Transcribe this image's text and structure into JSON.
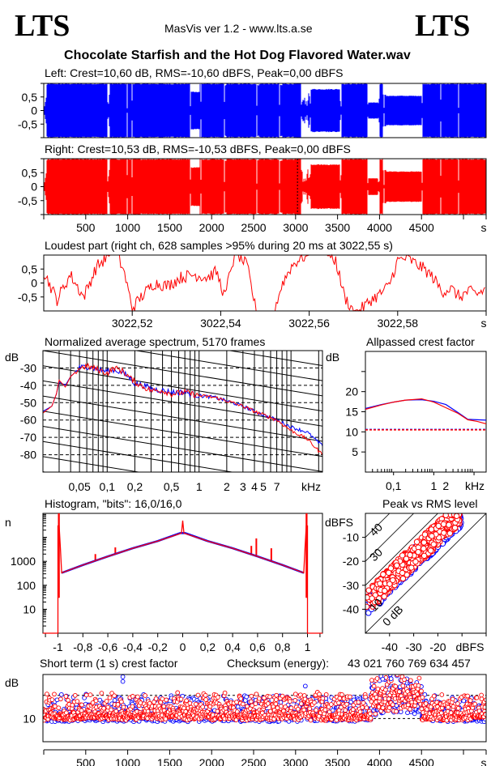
{
  "header": {
    "logo_left": "LTS",
    "logo_right": "LTS",
    "app_version": "MasVis ver 1.2 - www.lts.a.se",
    "file_name": "Chocolate Starfish and the Hot Dog Flavored Water.wav"
  },
  "colors": {
    "left": "#0000ff",
    "right": "#ff0000",
    "frame": "#000000"
  },
  "chart_data": [
    {
      "id": "left-waveform",
      "type": "area",
      "title": "Left: Crest=10,60 dB, RMS=-10,60 dBFS, Peak=0,00 dBFS",
      "ylim": [
        -1,
        1
      ],
      "yticks": [
        "0,5",
        "0",
        "-0,5"
      ],
      "yticks_values": [
        0.5,
        0,
        -0.5
      ],
      "xlim": [
        0,
        5270
      ],
      "series": [
        {
          "name": "Left",
          "color": "#0000ff",
          "segments": [
            [
              30,
              1.0
            ],
            [
              40,
              0.95
            ],
            [
              780,
              1.0
            ],
            [
              790,
              0.6
            ],
            [
              1000,
              1.0
            ],
            [
              1050,
              1.0
            ],
            [
              1755,
              1.0
            ],
            [
              1765,
              0.7
            ],
            [
              1860,
              0.7
            ],
            [
              1880,
              1.0
            ],
            [
              2160,
              1.0
            ],
            [
              2180,
              0.95
            ],
            [
              2530,
              1.0
            ],
            [
              2560,
              0.95
            ],
            [
              2810,
              1.0
            ],
            [
              2840,
              0.95
            ],
            [
              3060,
              1.0
            ],
            [
              3090,
              0.0
            ],
            [
              3130,
              0.4
            ],
            [
              3200,
              0.8
            ],
            [
              3530,
              0.8
            ],
            [
              3560,
              1.0
            ],
            [
              3860,
              1.0
            ],
            [
              3990,
              0.3
            ],
            [
              4040,
              1.0
            ],
            [
              4080,
              0.6
            ],
            [
              4500,
              0.55
            ],
            [
              4520,
              1.0
            ],
            [
              5270,
              1.0
            ]
          ]
        }
      ]
    },
    {
      "id": "right-waveform",
      "type": "area",
      "title": "Right: Crest=10,53 dB, RMS=-10,53 dBFS, Peak=0,00 dBFS",
      "ylim": [
        -1,
        1
      ],
      "yticks": [
        "0,5",
        "0",
        "-0,5"
      ],
      "yticks_values": [
        0.5,
        0,
        -0.5
      ],
      "xlim": [
        0,
        5270
      ],
      "xticks": [
        "500",
        "1000",
        "1500",
        "2000",
        "2500",
        "3000",
        "3500",
        "4000",
        "4500",
        "s"
      ],
      "xticks_values": [
        500,
        1000,
        1500,
        2000,
        2500,
        3000,
        3500,
        4000,
        4500,
        5000
      ],
      "marker_at": 3022.55,
      "series": [
        {
          "name": "Right",
          "color": "#ff0000"
        }
      ]
    },
    {
      "id": "loudest-part",
      "type": "line",
      "title": "Loudest part (right ch, 628 samples >95% during 20 ms at 3022,55 s)",
      "ylim": [
        -1,
        1
      ],
      "yticks": [
        "0,5",
        "0",
        "-0,5"
      ],
      "yticks_values": [
        0.5,
        0,
        -0.5
      ],
      "xlim": [
        3022.5,
        3022.6
      ],
      "xticks": [
        "3022,52",
        "3022,54",
        "3022,56",
        "3022,58",
        "s"
      ],
      "xticks_values": [
        3022.52,
        3022.54,
        3022.56,
        3022.58,
        3022.6
      ],
      "series": [
        {
          "name": "Right",
          "color": "#ff0000",
          "x": [
            3022.5,
            3022.503,
            3022.506,
            3022.509,
            3022.512,
            3022.515,
            3022.5165,
            3022.518,
            3022.52,
            3022.522,
            3022.525,
            3022.528,
            3022.531,
            3022.534,
            3022.537,
            3022.539,
            3022.541,
            3022.5425,
            3022.544,
            3022.546,
            3022.548,
            3022.55,
            3022.552,
            3022.554,
            3022.556,
            3022.558,
            3022.56,
            3022.562,
            3022.564,
            3022.566,
            3022.568,
            3022.57,
            3022.572,
            3022.574,
            3022.576,
            3022.578,
            3022.58,
            3022.582,
            3022.584,
            3022.586,
            3022.588,
            3022.59,
            3022.592,
            3022.594,
            3022.596,
            3022.598,
            3022.6
          ],
          "y": [
            0.4,
            -0.6,
            0.3,
            -0.5,
            0.6,
            1.0,
            1.0,
            0.5,
            -0.9,
            -0.5,
            0.0,
            -0.1,
            0.2,
            0.3,
            0.2,
            0.4,
            -0.5,
            0.7,
            1.0,
            0.6,
            -1.0,
            -1.0,
            -1.0,
            0.0,
            0.6,
            0.9,
            1.0,
            1.0,
            1.0,
            0.8,
            -0.5,
            -1.0,
            -0.9,
            -0.6,
            -0.4,
            -0.1,
            0.8,
            0.9,
            0.7,
            0.5,
            0.2,
            -0.3,
            -0.2,
            -0.5,
            -0.3,
            -0.4,
            -0.2
          ]
        }
      ]
    },
    {
      "id": "spectrum",
      "type": "line",
      "title": "Normalized average spectrum, 5170 frames",
      "ylabel": "dB",
      "xlabel": "kHz",
      "xscale": "log",
      "xlim": [
        0.02,
        22
      ],
      "ylim": [
        -90,
        -20
      ],
      "yticks": [
        "-30",
        "-40",
        "-50",
        "-60",
        "-70",
        "-80"
      ],
      "yticks_values": [
        -30,
        -40,
        -50,
        -60,
        -70,
        -80
      ],
      "xticks": [
        "0,05",
        "0,1",
        "0,2",
        "0,5",
        "1",
        "2",
        "3",
        "4",
        "5",
        "7",
        "kHz"
      ],
      "xticks_values": [
        0.05,
        0.1,
        0.2,
        0.5,
        1,
        2,
        3,
        4,
        5,
        7,
        22
      ],
      "grid": true,
      "series": [
        {
          "name": "Left",
          "color": "#0000ff",
          "x": [
            0.02,
            0.025,
            0.028,
            0.03,
            0.035,
            0.04,
            0.05,
            0.06,
            0.07,
            0.08,
            0.1,
            0.12,
            0.15,
            0.18,
            0.2,
            0.25,
            0.3,
            0.4,
            0.5,
            0.7,
            1,
            1.5,
            2,
            3,
            4,
            5,
            7,
            10,
            15,
            22
          ],
          "y": [
            -55,
            -52,
            -45,
            -38,
            -40,
            -35,
            -30,
            -29,
            -30,
            -31,
            -32,
            -31,
            -33,
            -36,
            -39,
            -40,
            -42,
            -43,
            -44,
            -44,
            -46,
            -47,
            -49,
            -52,
            -55,
            -57,
            -60,
            -64,
            -67,
            -75
          ]
        },
        {
          "name": "Right",
          "color": "#ff0000",
          "x": [
            0.02,
            0.025,
            0.028,
            0.03,
            0.035,
            0.04,
            0.05,
            0.06,
            0.07,
            0.08,
            0.1,
            0.12,
            0.15,
            0.18,
            0.2,
            0.25,
            0.3,
            0.4,
            0.5,
            0.7,
            1,
            1.5,
            2,
            3,
            4,
            5,
            7,
            10,
            15,
            22
          ],
          "y": [
            -56,
            -52,
            -45,
            -37,
            -41,
            -35,
            -30,
            -29,
            -30,
            -31,
            -33,
            -30,
            -32,
            -36,
            -38,
            -41,
            -43,
            -43,
            -45,
            -44,
            -46,
            -47,
            -49,
            -52,
            -55,
            -57,
            -60,
            -66,
            -71,
            -80
          ]
        }
      ]
    },
    {
      "id": "allpassed-crest",
      "type": "line",
      "title": "Allpassed crest factor",
      "ylabel": "dB",
      "xlabel": "kHz",
      "xscale": "log",
      "xlim": [
        0.02,
        20
      ],
      "ylim": [
        0,
        30
      ],
      "yticks": [
        "20",
        "15",
        "10",
        "5"
      ],
      "yticks_values": [
        20,
        15,
        10,
        5
      ],
      "xticks": [
        "0,1",
        "1",
        "2",
        "kHz"
      ],
      "xticks_values": [
        0.1,
        1,
        2,
        20
      ],
      "reference_lines": [
        {
          "name": "Left",
          "color": "#0000ff",
          "value": 10.6
        },
        {
          "name": "Right",
          "color": "#ff0000",
          "value": 10.5
        }
      ],
      "series": [
        {
          "name": "Left",
          "color": "#0000ff",
          "x": [
            0.02,
            0.05,
            0.1,
            0.2,
            0.5,
            1,
            2,
            4,
            7,
            12,
            20
          ],
          "y": [
            15.8,
            16.8,
            17.4,
            17.9,
            18.0,
            17.6,
            16.8,
            14.8,
            13.1,
            13.0,
            12.9
          ]
        },
        {
          "name": "Right",
          "color": "#ff0000",
          "x": [
            0.02,
            0.05,
            0.1,
            0.2,
            0.5,
            1,
            2,
            4,
            7,
            12,
            20
          ],
          "y": [
            15.6,
            16.7,
            17.4,
            17.9,
            18.2,
            17.4,
            16.0,
            14.6,
            13.0,
            12.6,
            12.0
          ]
        }
      ]
    },
    {
      "id": "histogram",
      "type": "line",
      "title": "Histogram, \"bits\": 16,0/16,0",
      "ylabel": "n",
      "yscale": "log",
      "xlim": [
        -1.12,
        1.12
      ],
      "ylim": [
        1,
        100000
      ],
      "yticks": [
        "1000",
        "100",
        "10"
      ],
      "yticks_values": [
        1000,
        100,
        10
      ],
      "xticks": [
        "-1",
        "-0,8",
        "-0,6",
        "-0,4",
        "-0,2",
        "0",
        "0,2",
        "0,4",
        "0,6",
        "0,8",
        "1"
      ],
      "xticks_values": [
        -1,
        -0.8,
        -0.6,
        -0.4,
        -0.2,
        0,
        0.2,
        0.4,
        0.6,
        0.8,
        1
      ],
      "series": [
        {
          "name": "Left",
          "color": "#0000ff",
          "x": [
            -0.97,
            -0.8,
            -0.6,
            -0.4,
            -0.2,
            -0.02,
            0.02,
            0.2,
            0.4,
            0.6,
            0.8,
            0.97
          ],
          "y": [
            330,
            700,
            1600,
            3500,
            7000,
            15000,
            15000,
            7000,
            3500,
            1600,
            700,
            330
          ]
        },
        {
          "name": "Right",
          "color": "#ff0000",
          "x": [
            -1.12,
            -1.0,
            -1.0,
            -0.99,
            -0.98,
            -0.97,
            -0.8,
            -0.6,
            -0.4,
            -0.2,
            -0.01,
            0,
            0.01,
            0.2,
            0.4,
            0.6,
            0.8,
            0.97,
            0.98,
            0.99,
            1.0,
            1.0,
            1.12
          ],
          "y": [
            1,
            1,
            30000,
            30000,
            3300,
            330,
            700,
            1600,
            3500,
            7000,
            15000,
            50000,
            15000,
            7000,
            3500,
            1600,
            700,
            330,
            3300,
            30000,
            30000,
            1,
            1
          ]
        }
      ],
      "spikes": [
        {
          "x": -0.7,
          "y": 2000
        },
        {
          "x": -0.54,
          "y": 3800
        },
        {
          "x": 0.55,
          "y": 4400
        },
        {
          "x": 0.59,
          "y": 9000
        },
        {
          "x": 0.71,
          "y": 3500
        }
      ]
    },
    {
      "id": "peak-vs-rms",
      "type": "scatter",
      "title": "Peak vs RMS level",
      "ylabel": "dBFS",
      "xlabel": "dBFS",
      "xlim": [
        -50,
        0
      ],
      "ylim": [
        -50,
        0
      ],
      "yticks": [
        "-10",
        "-20",
        "-30",
        "-40"
      ],
      "yticks_values": [
        -10,
        -20,
        -30,
        -40
      ],
      "xticks": [
        "-40",
        "-30",
        "-20",
        "dBFS"
      ],
      "xticks_values": [
        -40,
        -30,
        -20,
        0
      ],
      "diagonals": [
        {
          "label": "0 dB",
          "offset": 0
        },
        {
          "label": "10",
          "offset": 10
        },
        {
          "label": "30",
          "offset": 30
        },
        {
          "label": "40",
          "offset": 40
        },
        {
          "label": "",
          "offset": 20
        }
      ],
      "cluster": {
        "rms_range": [
          -50,
          -11
        ],
        "crest_range": [
          6,
          18
        ]
      }
    },
    {
      "id": "short-term-crest",
      "type": "scatter",
      "title": "Short term (1 s) crest factor",
      "checksum_label": "Checksum (energy):",
      "checksum_value": "43 021 760 769 634 457",
      "ylabel": "dB",
      "xlim": [
        0,
        5270
      ],
      "ylim": [
        0,
        20
      ],
      "yticks": [
        "10"
      ],
      "yticks_values": [
        10
      ],
      "dashed_lines": [
        10,
        15
      ],
      "xticks": [
        "500",
        "1000",
        "1500",
        "2000",
        "2500",
        "3000",
        "3500",
        "4000",
        "4500",
        "s"
      ],
      "xticks_values": [
        500,
        1000,
        1500,
        2000,
        2500,
        3000,
        3500,
        4000,
        4500,
        5000
      ],
      "series": [
        {
          "name": "Left",
          "color": "#0000ff"
        },
        {
          "name": "Right",
          "color": "#ff0000"
        }
      ],
      "outliers": [
        {
          "t": 950,
          "v": 19
        },
        {
          "t": 950,
          "v": 18
        },
        {
          "t": 3120,
          "v": 17
        },
        {
          "t": 4040,
          "v": 18.5
        },
        {
          "t": 4140,
          "v": 18.6
        }
      ]
    }
  ]
}
